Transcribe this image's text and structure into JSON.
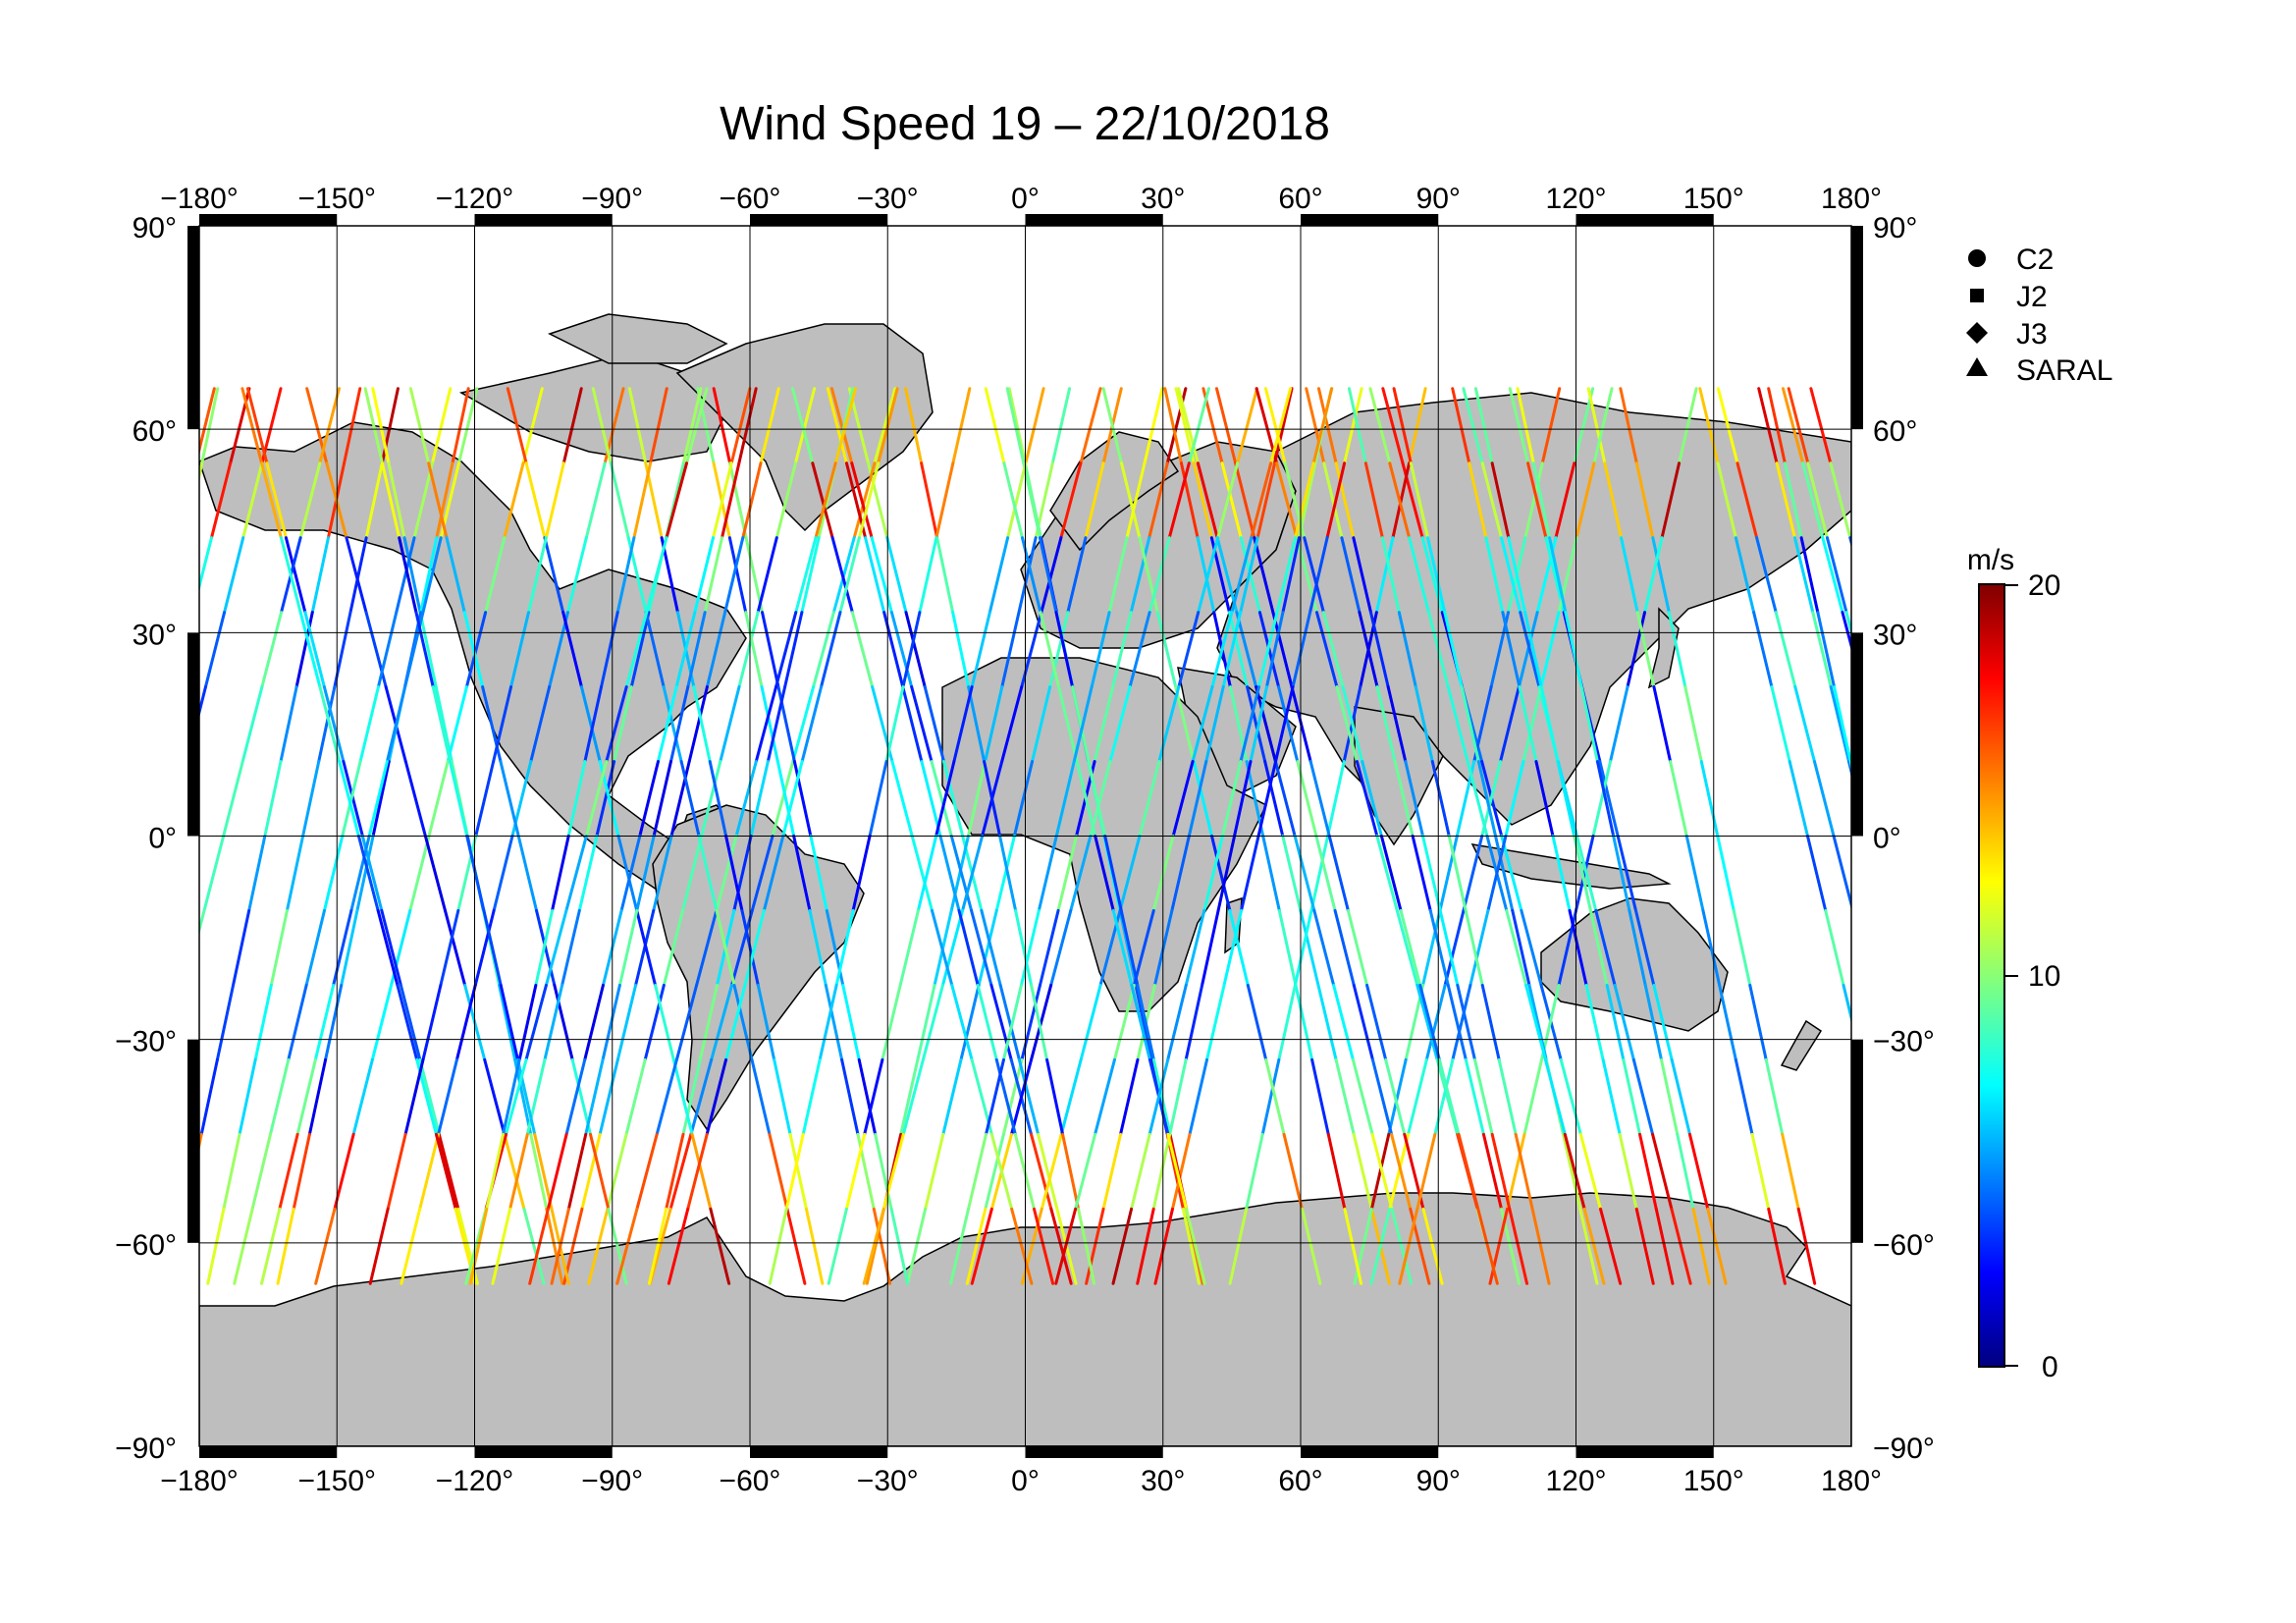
{
  "title": "Wind Speed 19 – 22/10/2018",
  "map": {
    "projection": "equirectangular",
    "lon_range": [
      -180,
      180
    ],
    "lat_range": [
      -90,
      90
    ],
    "lon_ticks": [
      "−180°",
      "−150°",
      "−120°",
      "−90°",
      "−60°",
      "−30°",
      "0°",
      "30°",
      "60°",
      "90°",
      "120°",
      "150°",
      "180°"
    ],
    "lat_ticks": [
      "90°",
      "60°",
      "30°",
      "0°",
      "−30°",
      "−60°",
      "−90°"
    ],
    "grid": true,
    "land_color": "#bebebe",
    "coast_color": "#000000"
  },
  "legend": {
    "items": [
      {
        "label": "C2",
        "marker": "circle"
      },
      {
        "label": "J2",
        "marker": "square"
      },
      {
        "label": "J3",
        "marker": "diamond"
      },
      {
        "label": "SARAL",
        "marker": "triangle"
      }
    ]
  },
  "colorbar": {
    "unit": "m/s",
    "min": 0,
    "max": 20,
    "tick_labels": [
      "20",
      "10",
      "0"
    ],
    "colormap": "jet"
  },
  "chart_data": {
    "type": "scatter",
    "title": "Wind Speed 19 – 22/10/2018",
    "xlim": [
      -180,
      180
    ],
    "ylim": [
      -90,
      90
    ],
    "color_variable": "wind speed",
    "color_range": [
      0,
      20
    ],
    "series": [
      {
        "name": "C2",
        "marker": "circle"
      },
      {
        "name": "J2",
        "marker": "square"
      },
      {
        "name": "J3",
        "marker": "diamond"
      },
      {
        "name": "SARAL",
        "marker": "triangle"
      }
    ]
  }
}
